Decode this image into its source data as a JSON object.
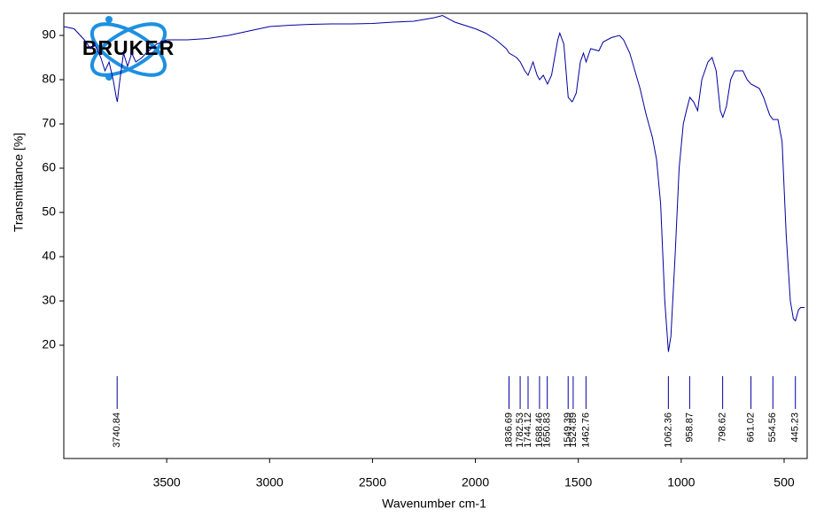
{
  "chart_data": {
    "type": "line",
    "logo_text": "BRUKER",
    "x_label": "Wavenumber cm-1",
    "y_label": "Transmittance [%]",
    "xlim": [
      4000,
      388
    ],
    "ylim": [
      -5.6,
      95
    ],
    "xticks": [
      3500,
      3000,
      2500,
      2000,
      1500,
      1000,
      500
    ],
    "yticks": [
      20,
      30,
      40,
      50,
      60,
      70,
      80,
      90
    ],
    "grid": false,
    "series": [
      {
        "color": "#0000a0",
        "x": [
          4000,
          3950,
          3900,
          3870,
          3850,
          3820,
          3800,
          3780,
          3760,
          3745,
          3740,
          3730,
          3710,
          3690,
          3670,
          3650,
          3620,
          3600,
          3550,
          3500,
          3400,
          3300,
          3200,
          3100,
          3000,
          2900,
          2800,
          2700,
          2600,
          2500,
          2400,
          2300,
          2200,
          2160,
          2100,
          2000,
          1950,
          1900,
          1850,
          1836,
          1800,
          1782,
          1760,
          1744,
          1720,
          1700,
          1688,
          1670,
          1650,
          1630,
          1600,
          1590,
          1570,
          1549,
          1530,
          1524,
          1510,
          1490,
          1475,
          1462,
          1440,
          1400,
          1380,
          1340,
          1300,
          1280,
          1250,
          1200,
          1170,
          1140,
          1120,
          1100,
          1080,
          1062,
          1050,
          1030,
          1010,
          990,
          975,
          958,
          940,
          920,
          900,
          870,
          850,
          830,
          810,
          798,
          780,
          760,
          740,
          700,
          680,
          661,
          640,
          620,
          600,
          570,
          554,
          530,
          510,
          490,
          470,
          455,
          445,
          430,
          420,
          400
        ],
        "values": [
          92,
          91.5,
          89,
          87,
          88,
          85,
          82,
          84,
          80,
          76,
          75,
          79,
          86,
          83,
          86,
          84,
          85,
          86,
          88,
          89,
          89,
          89.3,
          90,
          91,
          92,
          92.3,
          92.5,
          92.6,
          92.6,
          92.7,
          93,
          93.2,
          94,
          94.5,
          93,
          91.5,
          90.5,
          89,
          87,
          86,
          85,
          84,
          82,
          81,
          84,
          81,
          80,
          81,
          79,
          81,
          89,
          90.5,
          88,
          76,
          75,
          75.5,
          77,
          84,
          86,
          84,
          87,
          86.5,
          88.5,
          89.5,
          90,
          89,
          86,
          78,
          72,
          67,
          62,
          52,
          30,
          18.5,
          22,
          40,
          60,
          70,
          73,
          76,
          75,
          73,
          80,
          84,
          85,
          82,
          73,
          71.5,
          74,
          80,
          82,
          82,
          80,
          79,
          78.5,
          78,
          76,
          72,
          71,
          71,
          66,
          45,
          30,
          26,
          25.5,
          28,
          28.5,
          28.5
        ]
      }
    ],
    "peaks": [
      3740.84,
      1836.69,
      1782.53,
      1744.12,
      1688.46,
      1650.83,
      1549.39,
      1524.89,
      1462.76,
      1062.36,
      958.87,
      798.62,
      661.02,
      554.56,
      445.23
    ]
  }
}
